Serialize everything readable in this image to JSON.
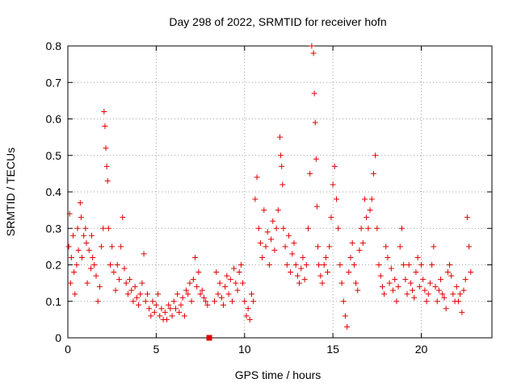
{
  "chart_data": {
    "type": "scatter",
    "title": "Day 298 of 2022, SRMTID for receiver hofn",
    "xlabel": "GPS time / hours",
    "ylabel": "SRMTID / TECUs",
    "xlim": [
      0,
      24
    ],
    "ylim": [
      0,
      0.8
    ],
    "grid": true,
    "marker": "+",
    "color": "#e00000",
    "x_ticks": [
      0,
      5,
      10,
      15,
      20
    ],
    "x_tick_labels": [
      "0",
      "5",
      "10",
      "15",
      "20"
    ],
    "y_ticks": [
      0,
      0.1,
      0.2,
      0.3,
      0.4,
      0.5,
      0.6,
      0.7,
      0.8
    ],
    "y_tick_labels": [
      "0",
      "0.1",
      "0.2",
      "0.3",
      "0.4",
      "0.5",
      "0.6",
      "0.7",
      "0.8"
    ],
    "series": [
      {
        "name": "SRMTID",
        "x": [
          0.05,
          0.1,
          0.15,
          0.2,
          0.3,
          0.35,
          0.4,
          0.5,
          0.55,
          0.6,
          0.7,
          0.75,
          0.8,
          0.9,
          1.0,
          1.05,
          1.1,
          1.2,
          1.3,
          1.35,
          1.4,
          1.5,
          1.6,
          1.7,
          1.8,
          1.9,
          2.0,
          2.05,
          2.1,
          2.15,
          2.2,
          2.25,
          2.3,
          2.4,
          2.5,
          2.6,
          2.7,
          2.8,
          2.9,
          3.0,
          3.1,
          3.2,
          3.3,
          3.4,
          3.5,
          3.6,
          3.7,
          3.8,
          3.9,
          4.0,
          4.1,
          4.2,
          4.3,
          4.4,
          4.5,
          4.6,
          4.7,
          4.8,
          4.9,
          5.0,
          5.1,
          5.2,
          5.3,
          5.4,
          5.5,
          5.6,
          5.7,
          5.8,
          5.9,
          6.0,
          6.1,
          6.2,
          6.3,
          6.4,
          6.5,
          6.6,
          6.7,
          6.8,
          6.9,
          7.0,
          7.1,
          7.2,
          7.3,
          7.4,
          7.5,
          7.6,
          7.7,
          7.8,
          7.9,
          8.0,
          8.3,
          8.4,
          8.5,
          8.6,
          8.7,
          8.8,
          8.9,
          9.0,
          9.1,
          9.2,
          9.3,
          9.4,
          9.5,
          9.6,
          9.7,
          9.8,
          9.9,
          10.0,
          10.1,
          10.2,
          10.3,
          10.4,
          10.5,
          10.6,
          10.7,
          10.8,
          10.9,
          11.0,
          11.1,
          11.2,
          11.3,
          11.4,
          11.5,
          11.6,
          11.7,
          11.8,
          11.9,
          12.0,
          12.05,
          12.1,
          12.15,
          12.2,
          12.3,
          12.4,
          12.5,
          12.6,
          12.7,
          12.8,
          12.9,
          13.0,
          13.1,
          13.2,
          13.3,
          13.4,
          13.5,
          13.6,
          13.7,
          13.8,
          13.9,
          13.95,
          14.0,
          14.05,
          14.1,
          14.15,
          14.2,
          14.3,
          14.4,
          14.5,
          14.6,
          14.7,
          14.8,
          14.9,
          15.0,
          15.1,
          15.2,
          15.3,
          15.4,
          15.5,
          15.6,
          15.7,
          15.8,
          15.9,
          16.0,
          16.1,
          16.2,
          16.3,
          16.4,
          16.5,
          16.6,
          16.7,
          16.8,
          16.9,
          17.0,
          17.1,
          17.2,
          17.3,
          17.4,
          17.5,
          17.6,
          17.7,
          17.8,
          17.9,
          18.0,
          18.1,
          18.2,
          18.3,
          18.4,
          18.5,
          18.6,
          18.7,
          18.8,
          18.9,
          19.0,
          19.1,
          19.2,
          19.3,
          19.4,
          19.5,
          19.6,
          19.7,
          19.8,
          19.9,
          20.0,
          20.1,
          20.2,
          20.3,
          20.4,
          20.5,
          20.6,
          20.7,
          20.8,
          20.9,
          21.0,
          21.1,
          21.2,
          21.3,
          21.4,
          21.5,
          21.6,
          21.7,
          21.8,
          21.9,
          22.0,
          22.1,
          22.2,
          22.3,
          22.4,
          22.5,
          22.6,
          22.7,
          22.8
        ],
        "y": [
          0.25,
          0.34,
          0.15,
          0.22,
          0.28,
          0.18,
          0.12,
          0.2,
          0.3,
          0.24,
          0.37,
          0.33,
          0.22,
          0.28,
          0.3,
          0.26,
          0.15,
          0.24,
          0.19,
          0.28,
          0.22,
          0.2,
          0.17,
          0.1,
          0.14,
          0.25,
          0.3,
          0.62,
          0.58,
          0.52,
          0.47,
          0.43,
          0.3,
          0.2,
          0.25,
          0.18,
          0.13,
          0.2,
          0.16,
          0.25,
          0.33,
          0.19,
          0.15,
          0.12,
          0.16,
          0.13,
          0.1,
          0.14,
          0.11,
          0.09,
          0.12,
          0.15,
          0.23,
          0.1,
          0.12,
          0.08,
          0.06,
          0.1,
          0.07,
          0.09,
          0.12,
          0.06,
          0.08,
          0.05,
          0.07,
          0.05,
          0.09,
          0.08,
          0.06,
          0.1,
          0.08,
          0.12,
          0.07,
          0.09,
          0.11,
          0.06,
          0.13,
          0.12,
          0.15,
          0.1,
          0.16,
          0.22,
          0.14,
          0.18,
          0.12,
          0.13,
          0.11,
          0.1,
          0.09,
          0.0,
          0.1,
          0.18,
          0.12,
          0.15,
          0.11,
          0.09,
          0.14,
          0.17,
          0.12,
          0.16,
          0.1,
          0.19,
          0.15,
          0.13,
          0.18,
          0.2,
          0.15,
          0.1,
          0.06,
          0.08,
          0.05,
          0.12,
          0.1,
          0.38,
          0.44,
          0.3,
          0.26,
          0.22,
          0.35,
          0.25,
          0.29,
          0.2,
          0.27,
          0.32,
          0.24,
          0.3,
          0.35,
          0.55,
          0.5,
          0.47,
          0.42,
          0.3,
          0.25,
          0.2,
          0.28,
          0.18,
          0.23,
          0.26,
          0.2,
          0.17,
          0.15,
          0.19,
          0.22,
          0.16,
          0.2,
          0.3,
          0.45,
          0.8,
          0.78,
          0.67,
          0.59,
          0.49,
          0.36,
          0.25,
          0.2,
          0.17,
          0.15,
          0.2,
          0.22,
          0.18,
          0.25,
          0.33,
          0.42,
          0.47,
          0.38,
          0.3,
          0.2,
          0.15,
          0.1,
          0.06,
          0.03,
          0.18,
          0.22,
          0.26,
          0.2,
          0.15,
          0.13,
          0.24,
          0.3,
          0.26,
          0.38,
          0.33,
          0.3,
          0.35,
          0.38,
          0.45,
          0.5,
          0.3,
          0.2,
          0.17,
          0.14,
          0.12,
          0.25,
          0.22,
          0.15,
          0.19,
          0.13,
          0.16,
          0.1,
          0.14,
          0.25,
          0.3,
          0.2,
          0.16,
          0.12,
          0.2,
          0.15,
          0.13,
          0.11,
          0.18,
          0.22,
          0.14,
          0.2,
          0.16,
          0.13,
          0.1,
          0.12,
          0.15,
          0.2,
          0.25,
          0.14,
          0.1,
          0.13,
          0.16,
          0.12,
          0.11,
          0.08,
          0.18,
          0.2,
          0.17,
          0.12,
          0.1,
          0.14,
          0.1,
          0.12,
          0.07,
          0.13,
          0.16,
          0.33,
          0.25,
          0.18
        ]
      },
      {
        "name": "marker",
        "x": [
          8.0
        ],
        "y": [
          0.0
        ]
      }
    ]
  }
}
